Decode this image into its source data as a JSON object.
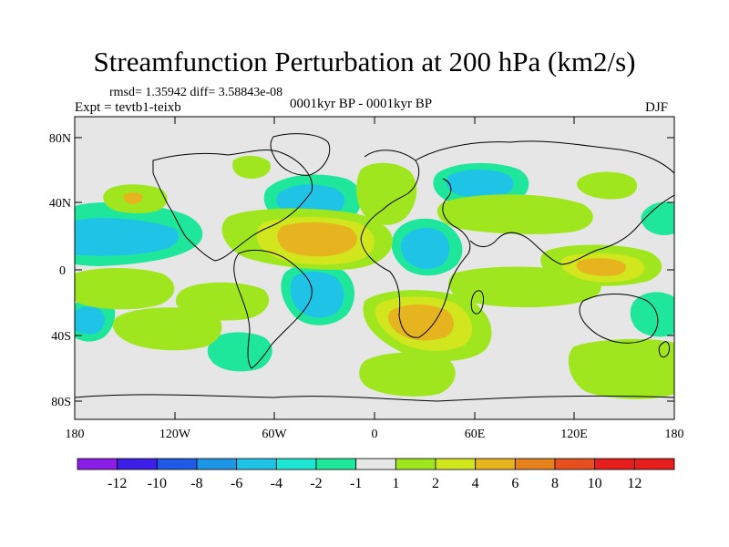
{
  "title": "Streamfunction Perturbation at 200 hPa (km2/s)",
  "stats": "rmsd= 1.35942 diff= 3.58843e-08",
  "experiment": "Expt = tevtb1-teixb",
  "period": "0001kyr BP - 0001kyr BP",
  "season": "DJF",
  "lat_labels": [
    "80N",
    "40N",
    "0",
    "40S",
    "80S"
  ],
  "lon_labels": [
    "180",
    "120W",
    "60W",
    "0",
    "60E",
    "120E",
    "180"
  ],
  "colorbar": {
    "labels": [
      "-12",
      "-10",
      "-8",
      "-6",
      "-4",
      "-2",
      "-1",
      "1",
      "2",
      "4",
      "6",
      "8",
      "10",
      "12"
    ],
    "colors": [
      "#8b1ee6",
      "#3c1ee6",
      "#1e5ae6",
      "#1e96e6",
      "#1ec3e6",
      "#1ee6d2",
      "#1ee69b",
      "#e6e6e6",
      "#a0e61e",
      "#d2e61e",
      "#e6b41e",
      "#e6821e",
      "#e6501e",
      "#e61e1e",
      "#e61e1e"
    ]
  },
  "fill_colors": {
    "ocean": "#e6e6e6",
    "neg1": "#1ee69b",
    "neg2": "#1ee6d2",
    "neg4": "#1ec3e6",
    "pos1": "#a0e61e",
    "pos2": "#d2e61e",
    "pos4": "#e6b41e",
    "pos6": "#e6821e"
  }
}
